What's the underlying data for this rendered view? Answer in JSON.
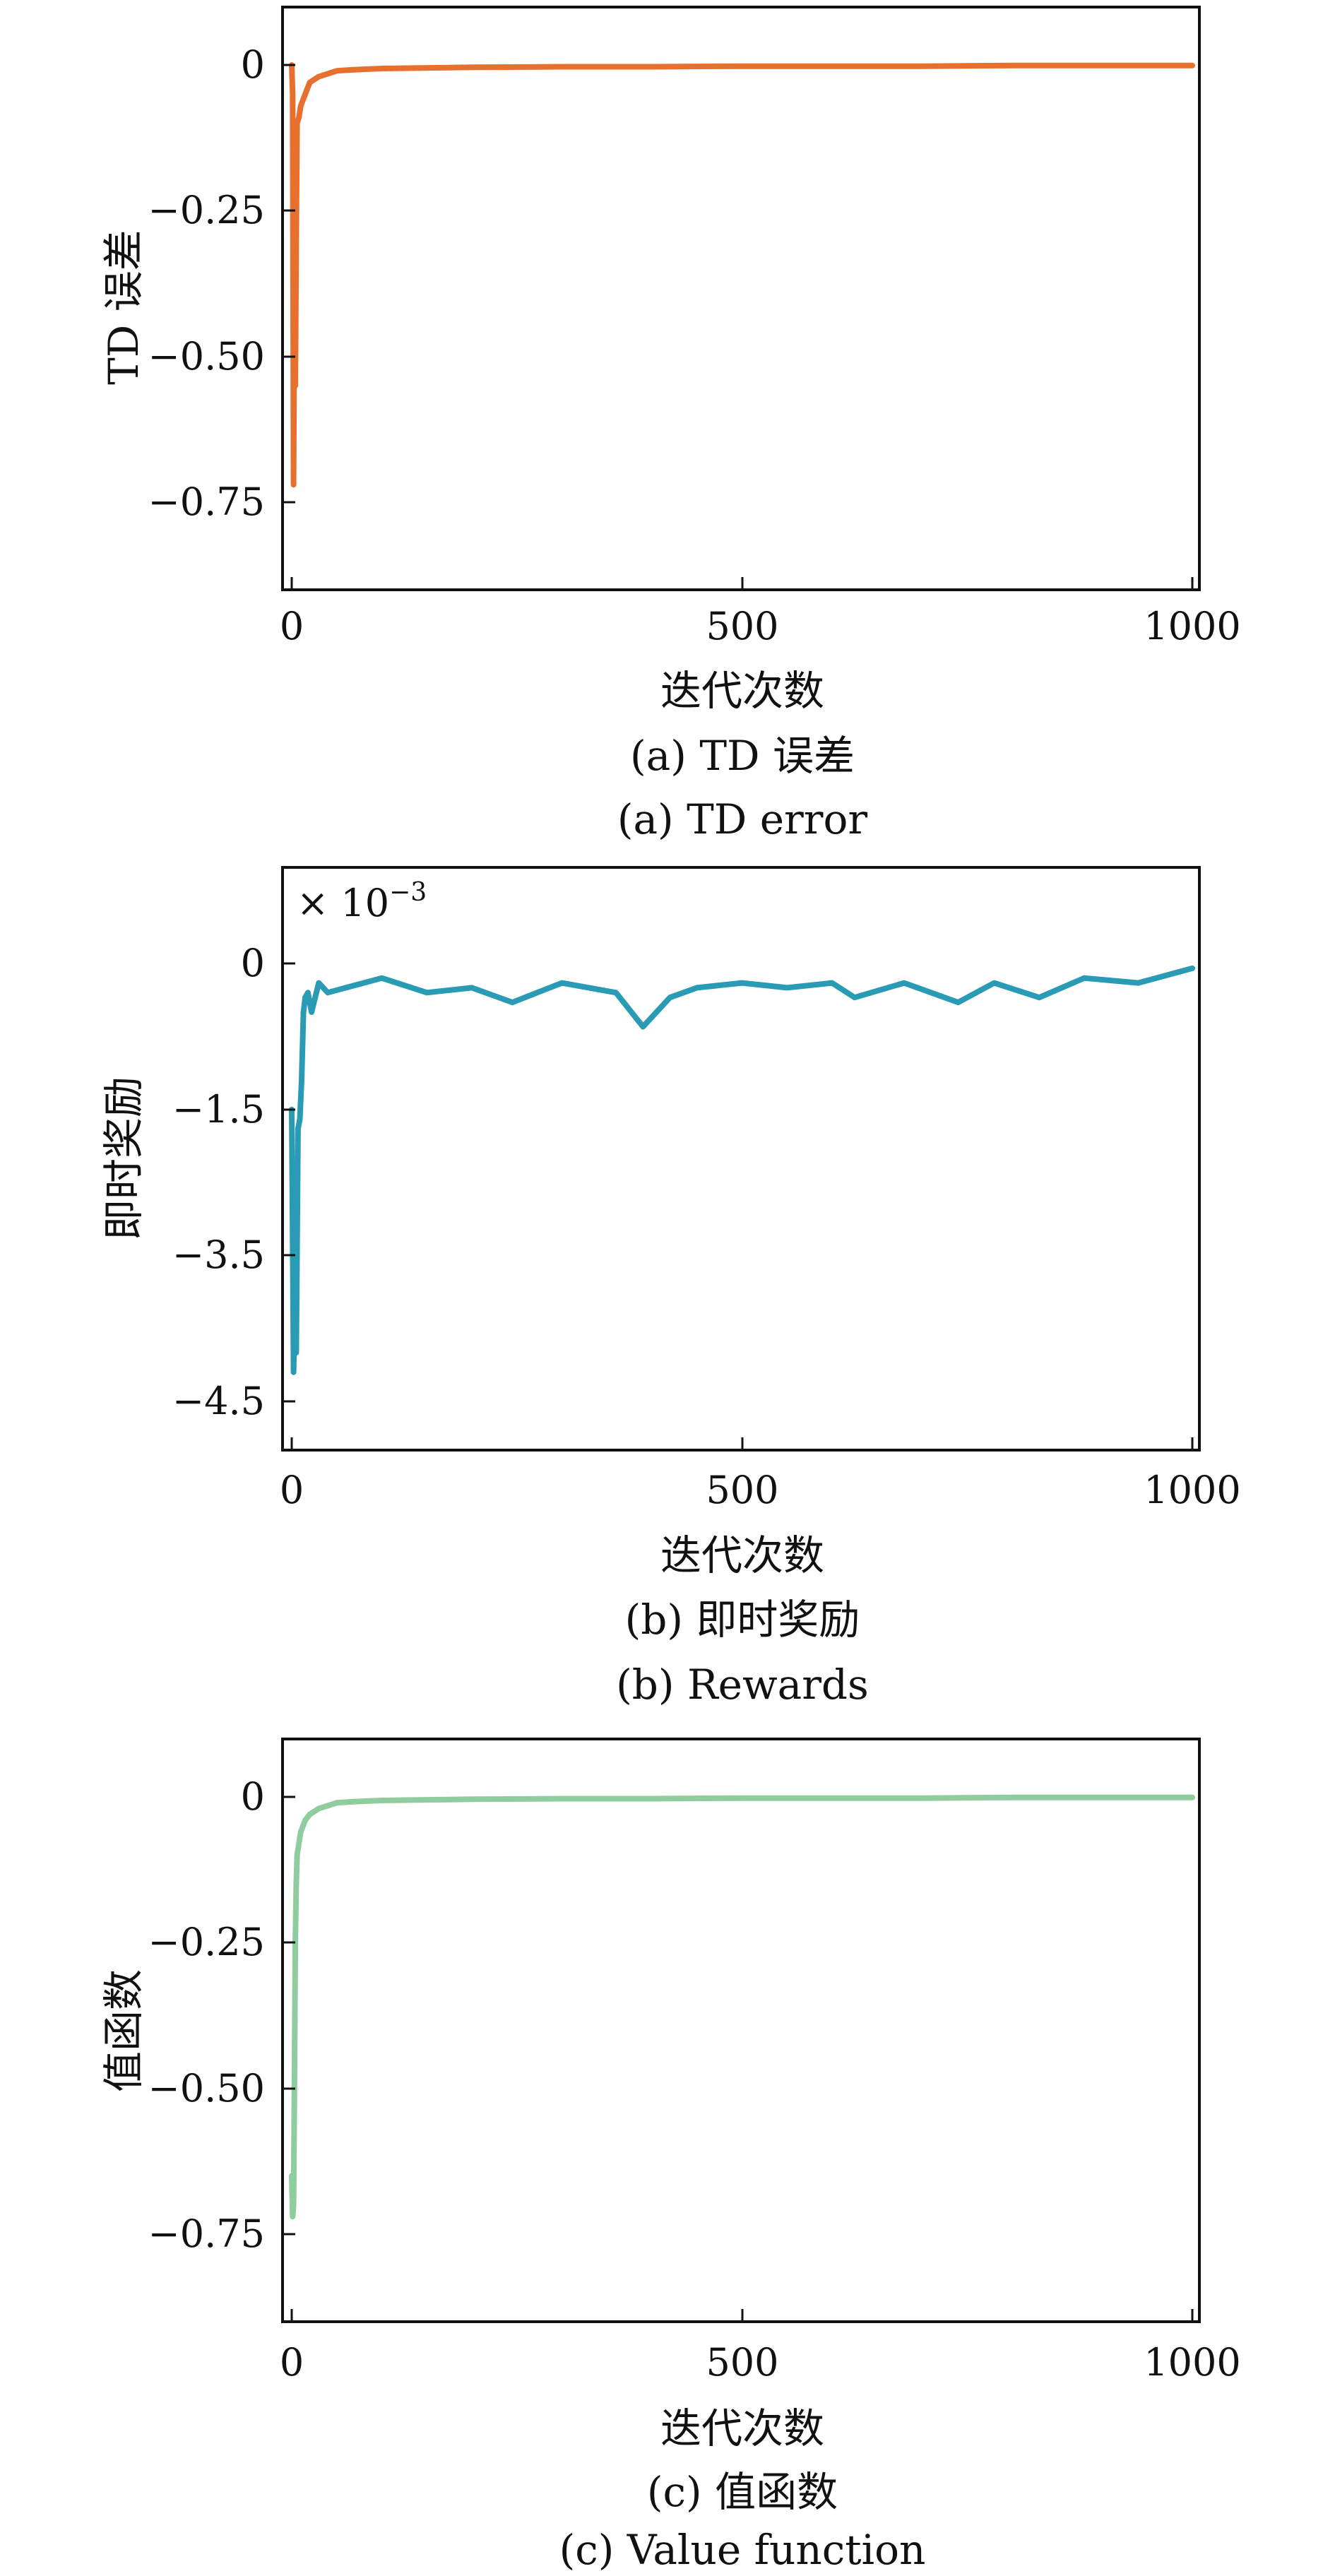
{
  "figure": {
    "panels": [
      {
        "id": "a",
        "color": "#e8702f",
        "caption_cn": "(a) TD 误差",
        "caption_en": "(a) TD error"
      },
      {
        "id": "b",
        "color": "#2a9bb5",
        "caption_cn": "(b) 即时奖励",
        "caption_en": "(b) Rewards"
      },
      {
        "id": "c",
        "color": "#8fcc9e",
        "caption_cn": "(c) 值函数",
        "caption_en": "(c) Value function"
      }
    ]
  },
  "chart_data": [
    {
      "type": "line",
      "title": "",
      "xlabel": "迭代次数",
      "ylabel": "TD 误差",
      "xlim": [
        0,
        1000
      ],
      "ylim": [
        -0.9,
        0.1
      ],
      "x_ticks": [
        0,
        500,
        1000
      ],
      "x_tick_labels": [
        "0",
        "500",
        "1000"
      ],
      "y_ticks": [
        0,
        -0.25,
        -0.5,
        -0.75
      ],
      "y_tick_labels": [
        "0",
        "−0.25",
        "−0.50",
        "−0.75"
      ],
      "grid": false,
      "series": [
        {
          "color": "#e8702f",
          "x": [
            0,
            1,
            2,
            3,
            4,
            5,
            6,
            8,
            10,
            15,
            20,
            30,
            40,
            50,
            70,
            100,
            150,
            200,
            300,
            400,
            500,
            600,
            700,
            800,
            900,
            1000
          ],
          "values": [
            0,
            -0.05,
            -0.72,
            -0.4,
            -0.55,
            -0.3,
            -0.1,
            -0.09,
            -0.07,
            -0.05,
            -0.03,
            -0.02,
            -0.015,
            -0.01,
            -0.008,
            -0.006,
            -0.005,
            -0.004,
            -0.003,
            -0.003,
            -0.002,
            -0.002,
            -0.002,
            -0.001,
            -0.001,
            -0.001
          ]
        }
      ]
    },
    {
      "type": "line",
      "title": "",
      "xlabel": "迭代次数",
      "ylabel": "即时奖励",
      "scale_note_prefix": "× 10",
      "scale_note_exponent": "−3",
      "xlim": [
        0,
        1000
      ],
      "ylim": [
        -5.1,
        1.0
      ],
      "x_ticks": [
        0,
        500,
        1000
      ],
      "x_tick_labels": [
        "0",
        "500",
        "1000"
      ],
      "y_ticks": [
        0,
        -1.5,
        -3.5,
        -4.5
      ],
      "y_tick_labels": [
        "0",
        "−1.5",
        "−3.5",
        "−4.5"
      ],
      "grid": false,
      "series": [
        {
          "color": "#2a9bb5",
          "x": [
            0,
            2,
            4,
            5,
            7,
            9,
            11,
            13,
            15,
            18,
            22,
            30,
            40,
            60,
            80,
            100,
            150,
            200,
            245,
            300,
            360,
            390,
            420,
            450,
            500,
            550,
            600,
            625,
            680,
            740,
            780,
            830,
            880,
            940,
            1000
          ],
          "values": [
            -1.5,
            -4.2,
            -3.4,
            -4.0,
            -1.7,
            -1.6,
            -1.2,
            -0.5,
            -0.35,
            -0.3,
            -0.5,
            -0.2,
            -0.3,
            -0.25,
            -0.2,
            -0.15,
            -0.3,
            -0.25,
            -0.4,
            -0.2,
            -0.3,
            -0.65,
            -0.35,
            -0.25,
            -0.2,
            -0.25,
            -0.2,
            -0.35,
            -0.2,
            -0.4,
            -0.2,
            -0.35,
            -0.15,
            -0.2,
            -0.05
          ]
        }
      ]
    },
    {
      "type": "line",
      "title": "",
      "xlabel": "迭代次数",
      "ylabel": "值函数",
      "xlim": [
        0,
        1000
      ],
      "ylim": [
        -0.9,
        0.1
      ],
      "x_ticks": [
        0,
        500,
        1000
      ],
      "x_tick_labels": [
        "0",
        "500",
        "1000"
      ],
      "y_ticks": [
        0,
        -0.25,
        -0.5,
        -0.75
      ],
      "y_tick_labels": [
        "0",
        "−0.25",
        "−0.50",
        "−0.75"
      ],
      "grid": false,
      "series": [
        {
          "color": "#8fcc9e",
          "x": [
            0,
            1,
            2,
            3,
            4,
            5,
            6,
            8,
            10,
            15,
            20,
            30,
            40,
            50,
            70,
            100,
            150,
            200,
            300,
            400,
            500,
            600,
            700,
            800,
            900,
            1000
          ],
          "values": [
            -0.65,
            -0.72,
            -0.7,
            -0.5,
            -0.25,
            -0.15,
            -0.1,
            -0.08,
            -0.06,
            -0.04,
            -0.03,
            -0.02,
            -0.015,
            -0.01,
            -0.008,
            -0.006,
            -0.005,
            -0.004,
            -0.003,
            -0.003,
            -0.002,
            -0.002,
            -0.002,
            -0.001,
            -0.001,
            -0.001
          ]
        }
      ]
    }
  ]
}
